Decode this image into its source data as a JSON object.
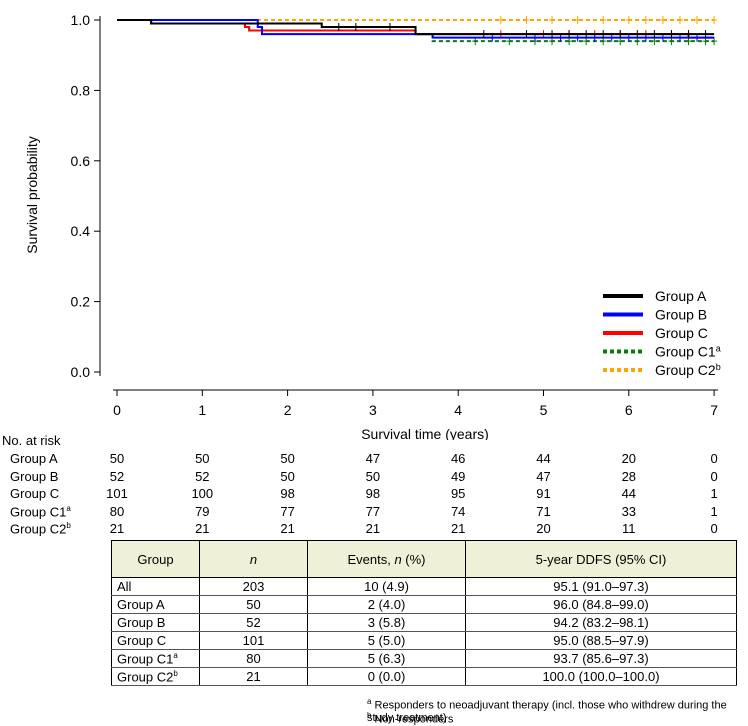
{
  "chart_data": {
    "type": "line",
    "title": "",
    "xlabel": "Survival time (years)",
    "ylabel": "Survival probability",
    "xlim": [
      0,
      7
    ],
    "ylim": [
      0.0,
      1.0
    ],
    "x_ticks": [
      "0",
      "1",
      "2",
      "3",
      "4",
      "5",
      "6",
      "7"
    ],
    "y_ticks": [
      "0.0",
      "0.2",
      "0.4",
      "0.6",
      "0.8",
      "1.0"
    ],
    "legend_position": "bottom-right",
    "series": [
      {
        "name": "Group A",
        "sup": "",
        "color": "#000000",
        "dashed": false,
        "steps": [
          [
            0,
            1.0
          ],
          [
            0.4,
            0.99
          ],
          [
            2.4,
            0.98
          ],
          [
            3.5,
            0.96
          ],
          [
            7,
            0.96
          ]
        ],
        "censors": [
          2.6,
          2.8,
          3.2,
          4.3,
          4.8,
          5.1,
          5.3,
          5.5,
          5.7,
          5.9,
          6.1,
          6.3,
          6.5,
          6.7,
          6.9
        ]
      },
      {
        "name": "Group B",
        "sup": "",
        "color": "#0000ff",
        "dashed": false,
        "steps": [
          [
            0,
            1.0
          ],
          [
            1.65,
            0.98
          ],
          [
            1.7,
            0.96
          ],
          [
            3.7,
            0.95
          ],
          [
            7,
            0.95
          ]
        ],
        "censors": [
          4.4,
          4.9,
          5.2,
          5.4,
          5.6,
          5.8,
          6.0,
          6.2,
          6.4,
          6.6,
          6.8
        ]
      },
      {
        "name": "Group C",
        "sup": "",
        "color": "#ff0000",
        "dashed": false,
        "steps": [
          [
            0,
            1.0
          ],
          [
            0.4,
            0.99
          ],
          [
            1.5,
            0.98
          ],
          [
            1.55,
            0.97
          ],
          [
            3.5,
            0.96
          ],
          [
            6.7,
            0.95
          ],
          [
            7,
            0.95
          ]
        ],
        "censors": [
          4.5,
          5.0,
          5.3,
          5.6,
          5.9,
          6.2,
          6.5,
          6.8
        ]
      },
      {
        "name": "Group C1",
        "sup": "a",
        "color": "#008000",
        "dashed": true,
        "steps": [
          [
            0,
            1.0
          ],
          [
            0.4,
            0.99
          ],
          [
            1.5,
            0.98
          ],
          [
            1.55,
            0.97
          ],
          [
            3.5,
            0.96
          ],
          [
            3.7,
            0.94
          ],
          [
            7,
            0.94
          ]
        ],
        "censors": [
          4.2,
          4.6,
          4.9,
          5.1,
          5.3,
          5.5,
          5.7,
          5.9,
          6.1,
          6.3,
          6.5,
          6.7,
          6.9,
          7.0
        ]
      },
      {
        "name": "Group C2",
        "sup": "b",
        "color": "#ffa500",
        "dashed": true,
        "steps": [
          [
            0,
            1.0
          ],
          [
            7,
            1.0
          ]
        ],
        "censors": [
          4.5,
          4.8,
          5.1,
          5.4,
          5.7,
          6.0,
          6.2,
          6.4,
          6.6,
          6.8,
          7.0
        ]
      }
    ]
  },
  "risk_table": {
    "title": "No. at risk",
    "rows": [
      {
        "label": "Group A",
        "sup": "",
        "values": [
          "50",
          "50",
          "50",
          "47",
          "46",
          "44",
          "20",
          "0"
        ]
      },
      {
        "label": "Group B",
        "sup": "",
        "values": [
          "52",
          "52",
          "50",
          "50",
          "49",
          "47",
          "28",
          "0"
        ]
      },
      {
        "label": "Group C",
        "sup": "",
        "values": [
          "101",
          "100",
          "98",
          "98",
          "95",
          "91",
          "44",
          "1"
        ]
      },
      {
        "label": "Group C1",
        "sup": "a",
        "values": [
          "80",
          "79",
          "77",
          "77",
          "74",
          "71",
          "33",
          "1"
        ]
      },
      {
        "label": "Group C2",
        "sup": "b",
        "values": [
          "21",
          "21",
          "21",
          "21",
          "21",
          "20",
          "11",
          "0"
        ]
      }
    ]
  },
  "summary_table": {
    "headers": {
      "group": "Group",
      "n": "n",
      "events_pre": "Events, ",
      "events_n": "n",
      "events_post": " (%)",
      "ddfs": "5-year DDFS (95% CI)"
    },
    "rows": [
      {
        "group": "All",
        "sup": "",
        "n": "203",
        "events": "10 (4.9)",
        "ddfs": "95.1 (91.0–97.3)"
      },
      {
        "group": "Group A",
        "sup": "",
        "n": "50",
        "events": "2 (4.0)",
        "ddfs": "96.0 (84.8–99.0)"
      },
      {
        "group": "Group B",
        "sup": "",
        "n": "52",
        "events": "3 (5.8)",
        "ddfs": "94.2 (83.2–98.1)"
      },
      {
        "group": "Group C",
        "sup": "",
        "n": "101",
        "events": "5 (5.0)",
        "ddfs": "95.0 (88.5–97.9)"
      },
      {
        "group": "Group C1",
        "sup": "a",
        "n": "80",
        "events": "5 (6.3)",
        "ddfs": "93.7 (85.6–97.3)"
      },
      {
        "group": "Group C2",
        "sup": "b",
        "n": "21",
        "events": "0 (0.0)",
        "ddfs": "100.0 (100.0–100.0)"
      }
    ]
  },
  "footnotes": [
    {
      "mark": "a",
      "text": "Responders to neoadjuvant therapy (incl. those who withdrew during the study treatment)"
    },
    {
      "mark": "b",
      "text": "Non-responders"
    }
  ]
}
